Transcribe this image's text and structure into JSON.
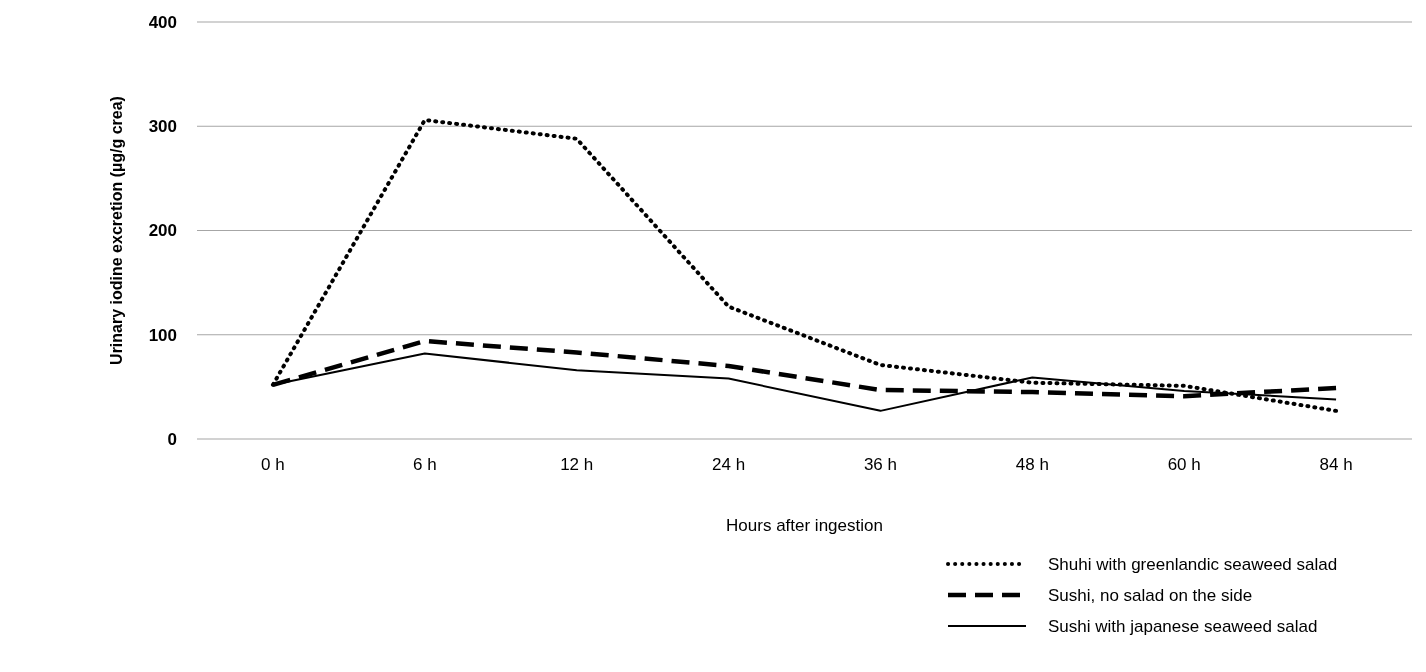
{
  "chart_data": {
    "type": "line",
    "xlabel": "Hours after ingestion",
    "ylabel": "Urinary iodine excretion (µg/g crea)",
    "categories": [
      "0 h",
      "6 h",
      "12 h",
      "24 h",
      "36 h",
      "48 h",
      "60 h",
      "84 h"
    ],
    "series": [
      {
        "name": "Shuhi with greenlandic seaweed salad",
        "color": "#000000",
        "line_style": "dotted",
        "values": [
          52,
          306,
          288,
          127,
          71,
          54,
          51,
          27
        ]
      },
      {
        "name": "Sushi, no salad on the side",
        "color": "#000000",
        "line_style": "dashed",
        "values": [
          52,
          94,
          83,
          70,
          47,
          45,
          41,
          49
        ]
      },
      {
        "name": "Sushi with japanese seaweed salad",
        "color": "#000000",
        "line_style": "solid",
        "values": [
          52,
          82,
          66,
          58,
          27,
          59,
          46,
          38
        ]
      }
    ],
    "ylim": [
      0,
      400
    ],
    "yticks": [
      0,
      100,
      200,
      300,
      400
    ],
    "grid": "y",
    "legend": "bottom right",
    "marker": "none"
  }
}
